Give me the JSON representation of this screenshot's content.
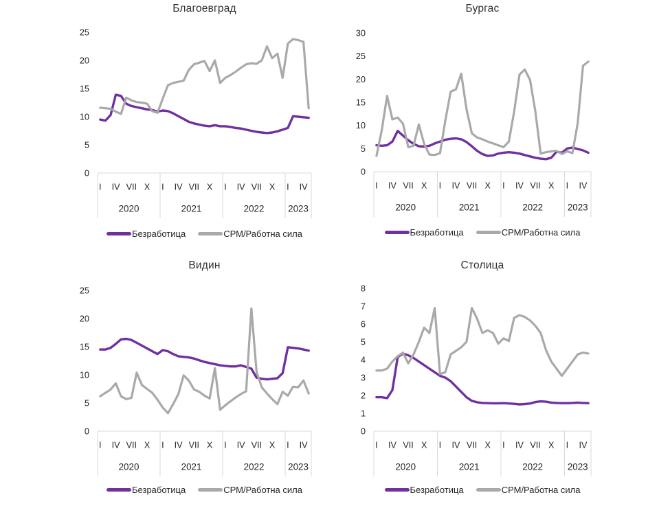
{
  "page": {
    "background": "#ffffff"
  },
  "colors": {
    "unemployment": "#7030A0",
    "srm": "#A9A9A9",
    "axis": "#D9D9D9",
    "text": "#262626"
  },
  "legend": {
    "items": [
      "Безработица",
      "СРМ/Работна сила"
    ]
  },
  "x_axis": {
    "note": "monthly points Jan 2020 - May 2023",
    "years": [
      {
        "label": "2020",
        "months": [
          "I",
          "IV",
          "VII",
          "X"
        ],
        "span": 12
      },
      {
        "label": "2021",
        "months": [
          "I",
          "IV",
          "VII",
          "X"
        ],
        "span": 12
      },
      {
        "label": "2022",
        "months": [
          "I",
          "IV",
          "VII",
          "X"
        ],
        "span": 12
      },
      {
        "label": "2023",
        "months": [
          "I",
          "IV"
        ],
        "span": 5
      }
    ]
  },
  "chart_data": [
    {
      "type": "line",
      "title": "Благоевград",
      "ylim": [
        0,
        25
      ],
      "yticks": [
        0,
        5,
        10,
        15,
        20,
        25
      ],
      "grid": false,
      "legend_position": "bottom",
      "series": [
        {
          "name": "Безработица",
          "color": "#7030A0",
          "values": [
            9.5,
            9.3,
            10.3,
            13.9,
            13.7,
            12.3,
            11.9,
            11.7,
            11.5,
            11.3,
            11.2,
            10.9,
            11.1,
            11.0,
            10.6,
            10.1,
            9.6,
            9.1,
            8.8,
            8.6,
            8.4,
            8.3,
            8.5,
            8.3,
            8.3,
            8.2,
            8.0,
            7.9,
            7.7,
            7.5,
            7.3,
            7.2,
            7.1,
            7.2,
            7.4,
            7.7,
            8.0,
            10.1,
            10.0,
            9.9,
            9.8
          ]
        },
        {
          "name": "СРМ/Работна сила",
          "color": "#A9A9A9",
          "values": [
            11.6,
            11.5,
            11.4,
            10.9,
            10.5,
            13.4,
            12.9,
            12.6,
            12.5,
            12.3,
            11.0,
            10.7,
            13.2,
            15.6,
            16.0,
            16.2,
            16.4,
            18.3,
            19.3,
            19.6,
            19.9,
            18.1,
            20.0,
            16.0,
            16.9,
            17.4,
            18.0,
            18.7,
            19.3,
            19.5,
            19.4,
            20.0,
            22.5,
            20.4,
            21.2,
            16.9,
            23.0,
            23.8,
            23.6,
            23.3,
            11.5
          ]
        }
      ]
    },
    {
      "type": "line",
      "title": "Бургас",
      "ylim": [
        0,
        30
      ],
      "yticks": [
        0,
        5,
        10,
        15,
        20,
        25,
        30
      ],
      "grid": false,
      "legend_position": "bottom",
      "series": [
        {
          "name": "Безработица",
          "color": "#7030A0",
          "values": [
            5.7,
            5.6,
            5.7,
            6.5,
            8.8,
            7.8,
            6.8,
            6.0,
            5.5,
            5.4,
            5.6,
            6.1,
            6.5,
            6.9,
            7.1,
            7.2,
            7.0,
            6.4,
            5.5,
            4.5,
            3.8,
            3.4,
            3.5,
            3.9,
            4.1,
            4.2,
            4.1,
            3.9,
            3.6,
            3.3,
            3.0,
            2.8,
            2.7,
            3.0,
            4.3,
            4.1,
            5.0,
            5.2,
            4.9,
            4.6,
            4.1
          ]
        },
        {
          "name": "СРМ/Работна сила",
          "color": "#A9A9A9",
          "values": [
            3.4,
            9.0,
            16.4,
            11.3,
            11.7,
            10.4,
            5.3,
            5.6,
            10.2,
            6.0,
            3.7,
            3.6,
            4.0,
            11.0,
            17.3,
            17.8,
            21.2,
            13.5,
            8.3,
            7.4,
            7.0,
            6.5,
            6.1,
            5.7,
            5.3,
            6.5,
            13.0,
            21.0,
            22.1,
            19.8,
            13.0,
            3.9,
            4.2,
            4.4,
            4.5,
            3.8,
            4.4,
            4.0,
            10.5,
            22.9,
            23.8
          ]
        }
      ]
    },
    {
      "type": "line",
      "title": "Видин",
      "ylim": [
        0,
        25
      ],
      "yticks": [
        0,
        5,
        10,
        15,
        20,
        25
      ],
      "grid": false,
      "legend_position": "bottom",
      "series": [
        {
          "name": "Безработица",
          "color": "#7030A0",
          "values": [
            14.5,
            14.5,
            14.8,
            15.5,
            16.3,
            16.4,
            16.2,
            15.7,
            15.2,
            14.7,
            14.2,
            13.7,
            14.4,
            14.2,
            13.7,
            13.3,
            13.2,
            13.1,
            12.9,
            12.6,
            12.3,
            12.1,
            11.9,
            11.7,
            11.6,
            11.5,
            11.5,
            11.7,
            11.4,
            11.1,
            9.5,
            9.3,
            9.2,
            9.3,
            9.4,
            10.3,
            14.9,
            14.8,
            14.7,
            14.5,
            14.3
          ]
        },
        {
          "name": "СРМ/Работна сила",
          "color": "#A9A9A9",
          "values": [
            6.2,
            6.8,
            7.4,
            8.5,
            6.2,
            5.7,
            5.9,
            10.4,
            8.2,
            7.5,
            6.8,
            5.6,
            4.2,
            3.2,
            4.8,
            6.6,
            9.9,
            9.0,
            7.4,
            7.0,
            6.3,
            5.8,
            11.2,
            3.8,
            4.6,
            5.3,
            6.0,
            6.6,
            7.1,
            21.8,
            10.5,
            7.8,
            6.7,
            5.7,
            4.8,
            7.0,
            6.3,
            7.9,
            7.8,
            9.0,
            6.7
          ]
        }
      ]
    },
    {
      "type": "line",
      "title": "Столица",
      "ylim": [
        0,
        8
      ],
      "yticks": [
        0,
        1,
        2,
        3,
        4,
        5,
        6,
        7,
        8
      ],
      "grid": false,
      "legend_position": "bottom",
      "series": [
        {
          "name": "Безработица",
          "color": "#7030A0",
          "values": [
            1.9,
            1.9,
            1.85,
            2.3,
            4.15,
            4.35,
            4.25,
            4.1,
            3.9,
            3.7,
            3.5,
            3.3,
            3.1,
            3.0,
            2.8,
            2.5,
            2.2,
            1.9,
            1.7,
            1.62,
            1.58,
            1.57,
            1.56,
            1.56,
            1.57,
            1.55,
            1.53,
            1.5,
            1.52,
            1.55,
            1.63,
            1.67,
            1.65,
            1.6,
            1.58,
            1.57,
            1.57,
            1.58,
            1.6,
            1.58,
            1.57
          ]
        },
        {
          "name": "СРМ/Работна сила",
          "color": "#A9A9A9",
          "values": [
            3.4,
            3.4,
            3.5,
            3.9,
            4.2,
            4.4,
            3.8,
            4.3,
            5.0,
            5.8,
            5.5,
            6.9,
            3.2,
            3.3,
            4.3,
            4.5,
            4.7,
            5.0,
            6.9,
            6.3,
            5.5,
            5.65,
            5.5,
            4.9,
            5.2,
            5.05,
            6.35,
            6.5,
            6.4,
            6.2,
            5.9,
            5.5,
            4.55,
            3.9,
            3.5,
            3.1,
            3.5,
            3.9,
            4.3,
            4.4,
            4.35
          ]
        }
      ]
    }
  ]
}
